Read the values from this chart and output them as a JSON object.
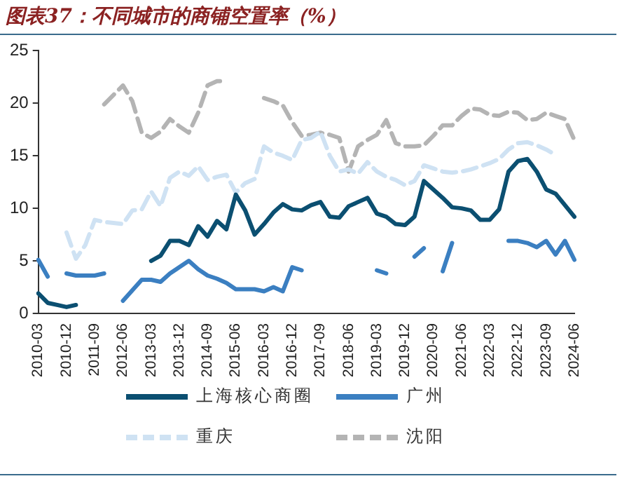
{
  "chart_data": {
    "type": "line",
    "title": "图表37：不同城市的商铺空置率（%）",
    "categories": [
      "2010-03",
      null,
      null,
      "2010-12",
      null,
      null,
      "2011-09",
      null,
      null,
      "2012-06",
      null,
      null,
      "2013-03",
      null,
      null,
      "2013-12",
      null,
      null,
      "2014-09",
      null,
      null,
      "2015-06",
      null,
      null,
      "2016-03",
      null,
      null,
      "2016-12",
      null,
      null,
      "2017-09",
      null,
      null,
      "2018-06",
      null,
      null,
      "2019-03",
      null,
      null,
      "2019-12",
      null,
      null,
      "2020-09",
      null,
      null,
      "2021-06",
      null,
      null,
      "2022-03",
      null,
      null,
      "2022-12",
      null,
      null,
      "2023-09",
      null,
      null,
      "2024-06"
    ],
    "series": [
      {
        "name": "上海核心商圈",
        "color": "#0b4f71",
        "line_style": "solid",
        "values": [
          1.9,
          1.0,
          0.8,
          0.6,
          0.8,
          null,
          null,
          null,
          null,
          null,
          null,
          null,
          5.0,
          5.5,
          6.9,
          6.9,
          6.5,
          8.3,
          7.3,
          8.8,
          8.0,
          11.3,
          9.8,
          7.5,
          8.5,
          9.6,
          10.4,
          9.9,
          9.8,
          10.3,
          10.6,
          9.2,
          9.1,
          10.2,
          10.6,
          11.0,
          9.5,
          9.2,
          8.5,
          8.4,
          9.2,
          12.6,
          11.8,
          11.0,
          10.1,
          10.0,
          9.8,
          8.9,
          8.9,
          9.9,
          13.5,
          14.5,
          14.7,
          13.5,
          11.8,
          11.4,
          10.3,
          9.2
        ]
      },
      {
        "name": "广州",
        "color": "#3b7fc1",
        "line_style": "solid",
        "values": [
          5.1,
          3.5,
          null,
          3.8,
          3.6,
          3.6,
          3.6,
          3.8,
          null,
          1.2,
          2.2,
          3.2,
          3.2,
          3.0,
          3.8,
          4.4,
          5.0,
          4.2,
          3.6,
          3.3,
          2.9,
          2.3,
          2.3,
          2.3,
          2.1,
          2.5,
          2.1,
          4.4,
          4.1,
          null,
          null,
          null,
          null,
          null,
          null,
          null,
          4.1,
          3.8,
          null,
          null,
          5.4,
          6.2,
          null,
          4.0,
          6.7,
          null,
          null,
          null,
          null,
          null,
          6.9,
          6.9,
          6.7,
          6.3,
          6.9,
          5.6,
          6.9,
          5.1
        ]
      },
      {
        "name": "重庆",
        "color": "#cfe2f3",
        "line_style": "dashed",
        "values": [
          null,
          null,
          null,
          7.7,
          5.2,
          6.5,
          8.9,
          8.7,
          8.6,
          8.5,
          9.8,
          9.9,
          11.6,
          10.2,
          12.9,
          13.5,
          13.1,
          14.0,
          12.7,
          13.0,
          13.2,
          11.5,
          12.4,
          12.8,
          15.9,
          15.3,
          15.0,
          14.6,
          16.5,
          16.7,
          17.3,
          15.0,
          13.5,
          13.7,
          13.3,
          14.4,
          13.5,
          13.0,
          12.7,
          12.2,
          12.6,
          14.1,
          13.8,
          13.5,
          13.4,
          13.5,
          13.7,
          14.0,
          14.3,
          14.7,
          15.6,
          16.2,
          16.3,
          16.0,
          15.6,
          15.1,
          null,
          null
        ]
      },
      {
        "name": "沈阳",
        "color": "#b4b4b4",
        "line_style": "dashed",
        "values": [
          null,
          null,
          null,
          null,
          null,
          null,
          null,
          19.9,
          20.8,
          21.7,
          20.2,
          17.2,
          16.7,
          17.3,
          18.5,
          17.8,
          17.2,
          19.1,
          21.7,
          22.1,
          22.1,
          null,
          null,
          null,
          20.5,
          20.2,
          19.8,
          18.2,
          16.9,
          17.0,
          17.2,
          17.0,
          16.7,
          13.5,
          15.9,
          16.5,
          17.0,
          18.4,
          16.2,
          15.9,
          15.9,
          16.0,
          16.9,
          17.9,
          17.9,
          18.8,
          19.5,
          19.4,
          18.9,
          18.8,
          19.2,
          19.1,
          18.4,
          18.5,
          19.1,
          18.8,
          18.5,
          16.5
        ]
      }
    ],
    "ylim": [
      0,
      25
    ],
    "yticks": [
      0,
      5,
      10,
      15,
      20,
      25
    ],
    "grid": false,
    "legend": "bottom",
    "marker": "none"
  }
}
